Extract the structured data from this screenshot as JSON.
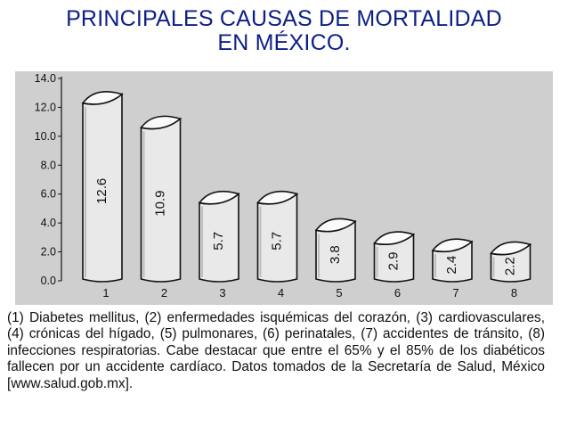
{
  "title": {
    "line1": "PRINCIPALES CAUSAS DE MORTALIDAD",
    "line2": "EN MÉXICO."
  },
  "caption": "(1) Diabetes mellitus, (2) enfermedades isquémicas del corazón, (3) cardiovasculares, (4) crónicas del hígado, (5) pulmonares, (6) perinatales, (7) accidentes de tránsito, (8) infecciones respiratorias. Cabe destacar que entre el 65% y el 85% de los diabéticos fallecen por un accidente cardíaco. Datos tomados de la Secretaría de Salud, México [www.salud.gob.mx].",
  "chart_data": {
    "type": "bar",
    "categories": [
      "1",
      "2",
      "3",
      "4",
      "5",
      "6",
      "7",
      "8"
    ],
    "values": [
      12.6,
      10.9,
      5.7,
      5.7,
      3.8,
      2.9,
      2.4,
      2.2
    ],
    "value_labels": [
      "12.6",
      "10.9",
      "5.7",
      "5.7",
      "3.8",
      "2.9",
      "2.4",
      "2.2"
    ],
    "yticks": [
      "0.0",
      "2.0",
      "4.0",
      "6.0",
      "8.0",
      "10.0",
      "12.0",
      "14.0"
    ],
    "ylim": [
      0,
      14
    ],
    "grid": false,
    "colors": {
      "panel": "#cfcfcf",
      "bar_fill": "#e9e9e9",
      "bar_top": "#fafafa",
      "outline": "#111111",
      "title": "#0d1f86"
    }
  }
}
